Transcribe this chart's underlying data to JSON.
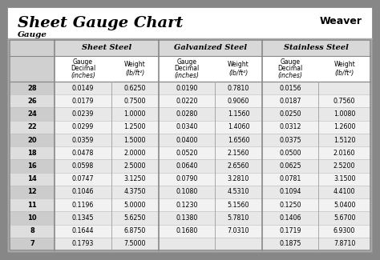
{
  "title": "Sheet Gauge Chart",
  "bg_outer": "#878787",
  "bg_white": "#ffffff",
  "bg_light_gray": "#e8e8e8",
  "bg_mid_gray": "#d0d0d0",
  "gauges": [
    "28",
    "26",
    "24",
    "22",
    "20",
    "18",
    "16",
    "14",
    "12",
    "11",
    "10",
    "8",
    "7"
  ],
  "ss_dec": [
    "0.0149",
    "0.0179",
    "0.0239",
    "0.0299",
    "0.0359",
    "0.0478",
    "0.0598",
    "0.0747",
    "0.1046",
    "0.1196",
    "0.1345",
    "0.1644",
    "0.1793"
  ],
  "ss_wt": [
    "0.6250",
    "0.7500",
    "1.0000",
    "1.2500",
    "1.5000",
    "2.0000",
    "2.5000",
    "3.1250",
    "4.3750",
    "5.0000",
    "5.6250",
    "6.8750",
    "7.5000"
  ],
  "gv_dec": [
    "0.0190",
    "0.0220",
    "0.0280",
    "0.0340",
    "0.0400",
    "0.0520",
    "0.0640",
    "0.0790",
    "0.1080",
    "0.1230",
    "0.1380",
    "0.1680",
    ""
  ],
  "gv_wt": [
    "0.7810",
    "0.9060",
    "1.1560",
    "1.4060",
    "1.6560",
    "2.1560",
    "2.6560",
    "3.2810",
    "4.5310",
    "5.1560",
    "5.7810",
    "7.0310",
    ""
  ],
  "st_dec": [
    "0.0156",
    "0.0187",
    "0.0250",
    "0.0312",
    "0.0375",
    "0.0500",
    "0.0625",
    "0.0781",
    "0.1094",
    "0.1250",
    "0.1406",
    "0.1719",
    "0.1875"
  ],
  "st_wt": [
    "",
    "0.7560",
    "1.0080",
    "1.2600",
    "1.5120",
    "2.0160",
    "2.5200",
    "3.1500",
    "4.4100",
    "5.0400",
    "5.6700",
    "6.9300",
    "7.8710"
  ],
  "sec_headers": [
    "Sheet Steel",
    "Galvanized Steel",
    "Stainless Steel"
  ],
  "col_sub1": "Gauge\nDecimal\n(inches)",
  "col_sub2": "Weight\n(lb/ft²)",
  "gauge_label": "Gauge"
}
